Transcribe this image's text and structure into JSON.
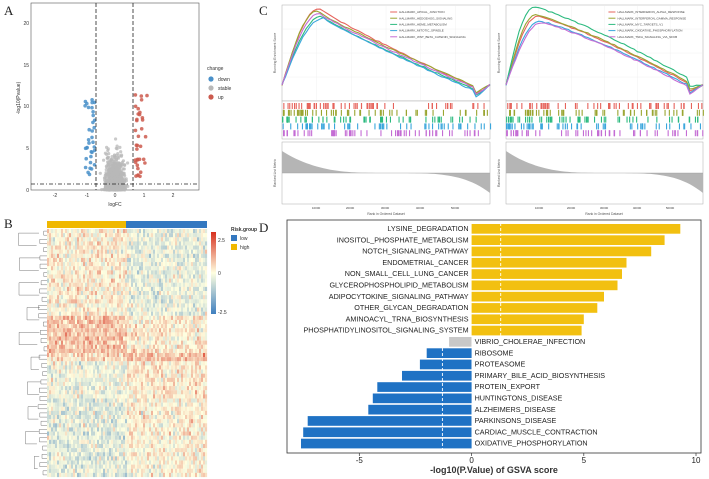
{
  "panels": {
    "a": "A",
    "b": "B",
    "c": "C",
    "d": "D"
  },
  "colors": {
    "down": "#4a90c9",
    "stable": "#b8b8b8",
    "up": "#cc5a4e",
    "low": "#3478c0",
    "high": "#f0b800",
    "hm_low": "#3f7fbf",
    "hm_mid": "#ffffe0",
    "hm_high": "#d7301f",
    "bar_pos": "#f2c010",
    "bar_neg": "#1f72c4",
    "bar_ns": "#c8c8c8"
  },
  "volcano": {
    "xlabel": "logFC",
    "ylabel": "-log10(Pvalue)",
    "xticks": [
      "-2",
      "-1",
      "0",
      "1",
      "2"
    ],
    "yticks": [
      "0",
      "5",
      "10",
      "15",
      "20"
    ],
    "legend_title": "change",
    "legend": [
      "down",
      "stable",
      "up"
    ]
  },
  "heatmap": {
    "legend_title": "Risk.group",
    "groups": [
      "low",
      "high"
    ],
    "scale_labels": [
      "2.5",
      "0",
      "-2.5"
    ]
  },
  "gsea": {
    "ylabel_top": "Running Enrichment Score",
    "ylabel_bottom": "Ranked List Metric",
    "xlabel": "Rank in Ordered Dataset",
    "xticks": [
      "10000",
      "20000",
      "30000",
      "40000",
      "50000"
    ],
    "left": {
      "legend": [
        "HALLMARK_APICAL_JUNCTION",
        "HALLMARK_HEDGEHOG_SIGNALING",
        "HALLMARK_HEME_METABOLISM",
        "HALLMARK_MITOTIC_SPINDLE",
        "HALLMARK_WNT_BETA_CATENIN_SIGNALING"
      ],
      "colors": [
        "#e6645c",
        "#9aa531",
        "#2cba7f",
        "#3aa6dc",
        "#c46cd4"
      ]
    },
    "right": {
      "legend": [
        "HALLMARK_INTERFERON_ALPHA_RESPONSE",
        "HALLMARK_INTERFERON_GAMMA_RESPONSE",
        "HALLMARK_MYC_TARGETS_V1",
        "HALLMARK_OXIDATIVE_PHOSPHORYLATION",
        "HALLMARK_TNFA_SIGNALING_VIA_NFKB"
      ],
      "colors": [
        "#e6645c",
        "#9aa531",
        "#2cba7f",
        "#3aa6dc",
        "#c46cd4"
      ]
    }
  },
  "chart_data": {
    "type": "bar",
    "title": "",
    "xlabel": "-log10(P.Value) of GSVA score",
    "xlim": [
      -8,
      10
    ],
    "xticks": [
      -5,
      0,
      5,
      10
    ],
    "threshold_lines": [
      -1.3,
      1.3
    ],
    "categories": [
      "LYSINE_DEGRADATION",
      "INOSITOL_PHOSPHATE_METABOLISM",
      "NOTCH_SIGNALING_PATHWAY",
      "ENDOMETRIAL_CANCER",
      "NON_SMALL_CELL_LUNG_CANCER",
      "GLYCEROPHOSPHOLIPID_METABOLISM",
      "ADIPOCYTOKINE_SIGNALING_PATHWAY",
      "OTHER_GLYCAN_DEGRADATION",
      "AMINOACYL_TRNA_BIOSYNTHESIS",
      "PHOSPHATIDYLINOSITOL_SIGNALING_SYSTEM",
      "VIBRIO_CHOLERAE_INFECTION",
      "RIBOSOME",
      "PROTEASOME",
      "PRIMARY_BILE_ACID_BIOSYNTHESIS",
      "PROTEIN_EXPORT",
      "HUNTINGTONS_DISEASE",
      "ALZHEIMERS_DISEASE",
      "PARKINSONS_DISEASE",
      "CARDIAC_MUSCLE_CONTRACTION",
      "OXIDATIVE_PHOSPHORYLATION"
    ],
    "values": [
      9.3,
      8.6,
      8.0,
      6.9,
      6.7,
      6.5,
      5.9,
      5.6,
      5.0,
      4.9,
      -1.0,
      -2.0,
      -2.3,
      -3.1,
      -4.2,
      -4.4,
      -4.6,
      -7.3,
      -7.5,
      -7.6
    ]
  }
}
